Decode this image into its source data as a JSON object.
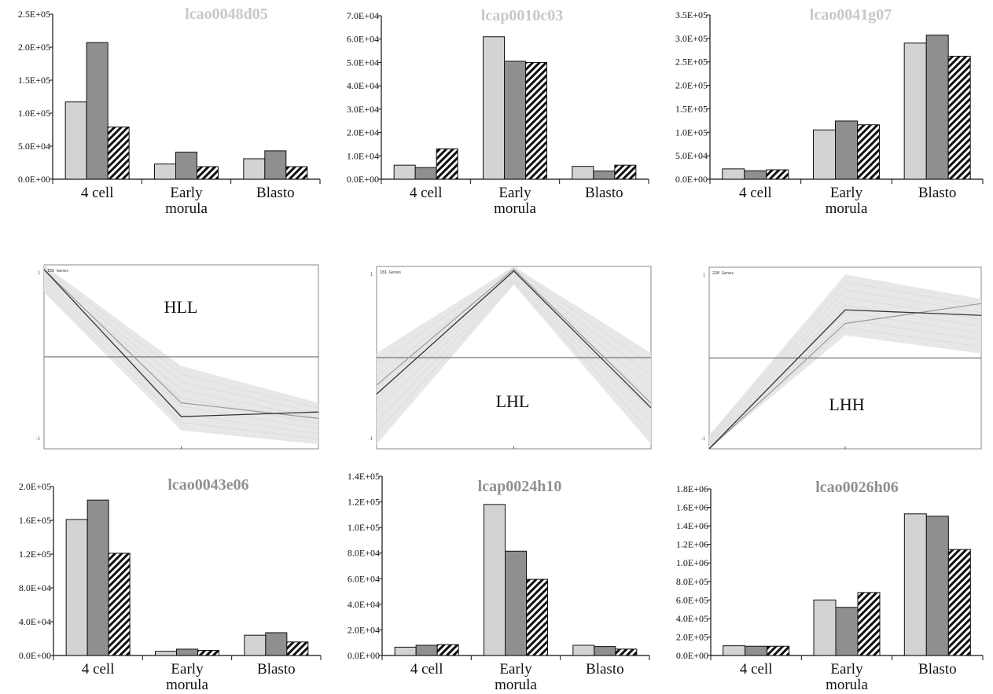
{
  "colors": {
    "light": "#d3d3d3",
    "dark": "#8f8f8f",
    "outline": "#111111",
    "title_light": "#c8c8c8",
    "title_dark": "#909090",
    "profile_band": "#e6e6e6"
  },
  "chart_data": [
    {
      "type": "bar",
      "title": "lcao0048d05",
      "title_color": "#c8c8c8",
      "categories": [
        "4 cell",
        "Early\nmorula",
        "Blasto"
      ],
      "ymax": 250000,
      "yticks": [
        "0.0E+00",
        "5.0E+04",
        "1.0E+05",
        "1.5E+05",
        "2.0E+05",
        "2.5E+05"
      ],
      "series": [
        {
          "values": [
            117000,
            23000,
            31000
          ],
          "pattern": "light"
        },
        {
          "values": [
            207000,
            41000,
            43000
          ],
          "pattern": "dark"
        },
        {
          "values": [
            79000,
            19000,
            19000
          ],
          "pattern": "hatch"
        }
      ]
    },
    {
      "type": "bar",
      "title": "lcap0010c03",
      "title_color": "#c8c8c8",
      "categories": [
        "4 cell",
        "Early\nmorula",
        "Blasto"
      ],
      "ymax": 70000,
      "yticks": [
        "0.0E+00",
        "1.0E+04",
        "2.0E+04",
        "3.0E+04",
        "4.0E+04",
        "5.0E+04",
        "6.0E+04",
        "7.0E+04"
      ],
      "series": [
        {
          "values": [
            6000,
            61000,
            5500
          ],
          "pattern": "light"
        },
        {
          "values": [
            5000,
            50500,
            3500
          ],
          "pattern": "dark"
        },
        {
          "values": [
            13000,
            50000,
            6000
          ],
          "pattern": "hatch"
        }
      ]
    },
    {
      "type": "bar",
      "title": "lcao0041g07",
      "title_color": "#c8c8c8",
      "categories": [
        "4 cell",
        "Early\nmorula",
        "Blasto"
      ],
      "ymax": 350000,
      "yticks": [
        "0.0E+00",
        "5.0E+04",
        "1.0E+05",
        "1.5E+05",
        "2.0E+05",
        "2.5E+05",
        "3.0E+05",
        "3.5E+05"
      ],
      "series": [
        {
          "values": [
            22000,
            105000,
            290000
          ],
          "pattern": "light"
        },
        {
          "values": [
            18000,
            124000,
            307000
          ],
          "pattern": "dark"
        },
        {
          "values": [
            20000,
            116000,
            262000
          ],
          "pattern": "hatch"
        }
      ]
    },
    {
      "type": "line",
      "label": "HLL",
      "corner_text": "156 Genes",
      "ytick_top": "1",
      "ytick_bottom": "-1",
      "ymin": -1,
      "ymax": 1,
      "x": [
        0,
        1,
        2
      ],
      "band_upper": [
        1.0,
        -0.1,
        -0.5
      ],
      "band_lower": [
        0.7,
        -0.8,
        -0.95
      ],
      "mean": [
        0.95,
        -0.65,
        -0.6
      ],
      "median": [
        0.95,
        -0.5,
        -0.67
      ]
    },
    {
      "type": "line",
      "label": "LHL",
      "corner_text": "181 Genes",
      "ytick_top": "1",
      "ytick_bottom": "-1",
      "ymin": -1,
      "ymax": 1,
      "x": [
        0,
        1,
        2
      ],
      "band_upper": [
        0.05,
        1.0,
        0.05
      ],
      "band_lower": [
        -0.95,
        0.8,
        -0.95
      ],
      "mean": [
        -0.4,
        0.95,
        -0.55
      ],
      "median": [
        -0.3,
        0.97,
        -0.5
      ]
    },
    {
      "type": "line",
      "label": "LHH",
      "corner_text": "220 Genes",
      "ytick_top": "1",
      "ytick_bottom": "-1",
      "ymin": -1,
      "ymax": 1,
      "x": [
        0,
        1,
        2
      ],
      "band_upper": [
        -0.85,
        0.92,
        0.65
      ],
      "band_lower": [
        -1.0,
        0.25,
        0.05
      ],
      "mean": [
        -1.0,
        0.53,
        0.47
      ],
      "median": [
        -1.0,
        0.38,
        0.6
      ]
    },
    {
      "type": "bar",
      "title": "lcao0043e06",
      "title_color": "#909090",
      "categories": [
        "4 cell",
        "Early\nmorula",
        "Blasto"
      ],
      "ymax": 200000,
      "yticks": [
        "0.0E+00",
        "4.0E+04",
        "8.0E+04",
        "1.2E+05",
        "1.6E+05",
        "2.0E+05"
      ],
      "series": [
        {
          "values": [
            161000,
            5000,
            24000
          ],
          "pattern": "light"
        },
        {
          "values": [
            184000,
            7500,
            27000
          ],
          "pattern": "dark"
        },
        {
          "values": [
            121000,
            6000,
            16000
          ],
          "pattern": "hatch"
        }
      ]
    },
    {
      "type": "bar",
      "title": "lcap0024h10",
      "title_color": "#909090",
      "categories": [
        "4 cell",
        "Early\nmorula",
        "Blasto"
      ],
      "ymax": 140000,
      "yticks": [
        "0.0E+00",
        "2.0E+04",
        "4.0E+04",
        "6.0E+04",
        "8.0E+04",
        "1.0E+05",
        "1.2E+05",
        "1.4E+05"
      ],
      "series": [
        {
          "values": [
            6500,
            118000,
            8000
          ],
          "pattern": "light"
        },
        {
          "values": [
            8000,
            81500,
            7000
          ],
          "pattern": "dark"
        },
        {
          "values": [
            8500,
            59500,
            5000
          ],
          "pattern": "hatch"
        }
      ]
    },
    {
      "type": "bar",
      "title": "lcao0026h06",
      "title_color": "#909090",
      "categories": [
        "4 cell",
        "Early\nmorula",
        "Blasto"
      ],
      "ymax": 1800000,
      "yticks": [
        "0.0E+00",
        "2.0E+05",
        "4.0E+05",
        "6.0E+05",
        "8.0E+05",
        "1.0E+06",
        "1.2E+06",
        "1.4E+06",
        "1.6E+06",
        "1.8E+06"
      ],
      "series": [
        {
          "values": [
            105000,
            600000,
            1530000
          ],
          "pattern": "light"
        },
        {
          "values": [
            100000,
            520000,
            1505000
          ],
          "pattern": "dark"
        },
        {
          "values": [
            100000,
            680000,
            1145000
          ],
          "pattern": "hatch"
        }
      ]
    }
  ]
}
